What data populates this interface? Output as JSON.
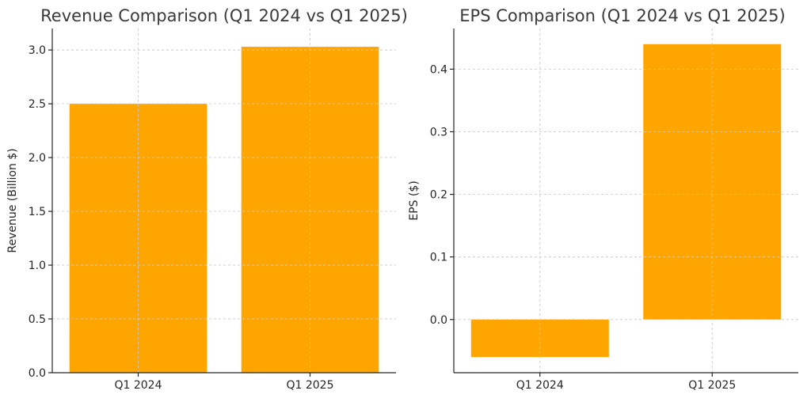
{
  "chart_data": [
    {
      "type": "bar",
      "title": "Revenue Comparison (Q1 2024 vs Q1 2025)",
      "xlabel": "",
      "ylabel": "Revenue (Billion $)",
      "categories": [
        "Q1 2024",
        "Q1 2025"
      ],
      "values": [
        2.5,
        3.03
      ],
      "ylim": [
        0,
        3.2
      ],
      "yticks": [
        "0.0",
        "0.5",
        "1.0",
        "1.5",
        "2.0",
        "2.5",
        "3.0"
      ],
      "ytick_values": [
        0,
        0.5,
        1.0,
        1.5,
        2.0,
        2.5,
        3.0
      ],
      "grid": true,
      "bar_color": "#FFA500"
    },
    {
      "type": "bar",
      "title": "EPS Comparison (Q1 2024 vs Q1 2025)",
      "xlabel": "",
      "ylabel": "EPS ($)",
      "categories": [
        "Q1 2024",
        "Q1 2025"
      ],
      "values": [
        -0.06,
        0.44
      ],
      "ylim": [
        -0.085,
        0.465
      ],
      "yticks": [
        "0.0",
        "0.1",
        "0.2",
        "0.3",
        "0.4"
      ],
      "ytick_values": [
        0,
        0.1,
        0.2,
        0.3,
        0.4
      ],
      "grid": true,
      "bar_color": "#FFA500"
    }
  ]
}
